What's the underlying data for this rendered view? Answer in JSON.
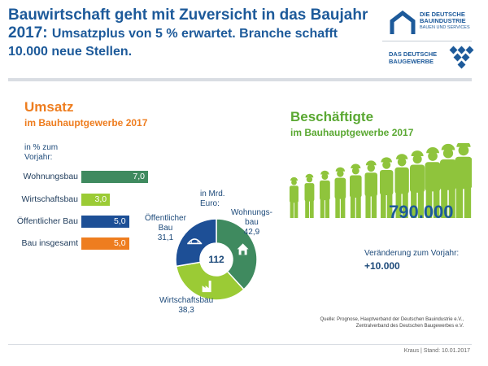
{
  "header": {
    "title_line1": "Bauwirtschaft geht mit Zuversicht in das Baujahr",
    "title_line2_strong": "2017:",
    "title_line2_rest": "Umsatzplus von 5 % erwartet. Branche schafft",
    "title_line3": "10.000 neue Stellen."
  },
  "logos": {
    "bauindustrie_line1": "DIE DEUTSCHE",
    "bauindustrie_line2": "BAUINDUSTRIE",
    "bauindustrie_line3": "BAUEN UND SERVICES",
    "baugewerbe_line1": "DAS DEUTSCHE",
    "baugewerbe_line2": "BAUGEWERBE"
  },
  "umsatz": {
    "title": "Umsatz",
    "subtitle": "im Bauhauptgewerbe 2017",
    "bar_note_line1": "in % zum",
    "bar_note_line2": "Vorjahr:",
    "donut_note_line1": "in Mrd.",
    "donut_note_line2": "Euro:",
    "donut_center": "112"
  },
  "chart_data": [
    {
      "type": "bar",
      "orientation": "horizontal",
      "title": "Umsatz im Bauhauptgewerbe 2017",
      "ylabel": "in % zum Vorjahr",
      "categories": [
        "Wohnungsbau",
        "Wirtschaftsbau",
        "Öffentlicher Bau",
        "Bau insgesamt"
      ],
      "values": [
        7.0,
        3.0,
        5.0,
        5.0
      ],
      "value_labels": [
        "7,0",
        "3,0",
        "5,0",
        "5,0"
      ],
      "colors": [
        "#3f8a5f",
        "#9bcb35",
        "#1d4f96",
        "#ee7d1f"
      ],
      "xlim": [
        0,
        7
      ]
    },
    {
      "type": "pie",
      "style": "donut",
      "unit": "Mrd. Euro",
      "total": 112,
      "labels": [
        "Wohnungs-bau",
        "Wirtschaftsbau",
        "Öffentlicher Bau"
      ],
      "label_lines": [
        [
          "Wohnungs-",
          "bau"
        ],
        [
          "Wirtschaftsbau"
        ],
        [
          "Öffentlicher",
          "Bau"
        ]
      ],
      "values": [
        42.9,
        38.3,
        31.1
      ],
      "value_labels": [
        "42,9",
        "38,3",
        "31,1"
      ],
      "colors": [
        "#3f8a5f",
        "#9bcb35",
        "#1d4f96"
      ],
      "icons": [
        "house-icon",
        "factory-icon",
        "bridge-icon"
      ]
    }
  ],
  "beschaeftigte": {
    "title": "Beschäftigte",
    "subtitle": "im Bauhauptgewerbe 2017",
    "value": "790.000",
    "change_label": "Veränderung zum Vorjahr:",
    "change_value": "+10.000",
    "worker_count": 12,
    "worker_color": "#8fc43c"
  },
  "source": {
    "line1": "Quelle: Prognose, Hauptverband der Deutschen Bauindustrie e.V.,",
    "line2": "Zentralverband des Deutschen Baugewerbes e.V."
  },
  "footer": "Kraus | Stand: 10.01.2017"
}
